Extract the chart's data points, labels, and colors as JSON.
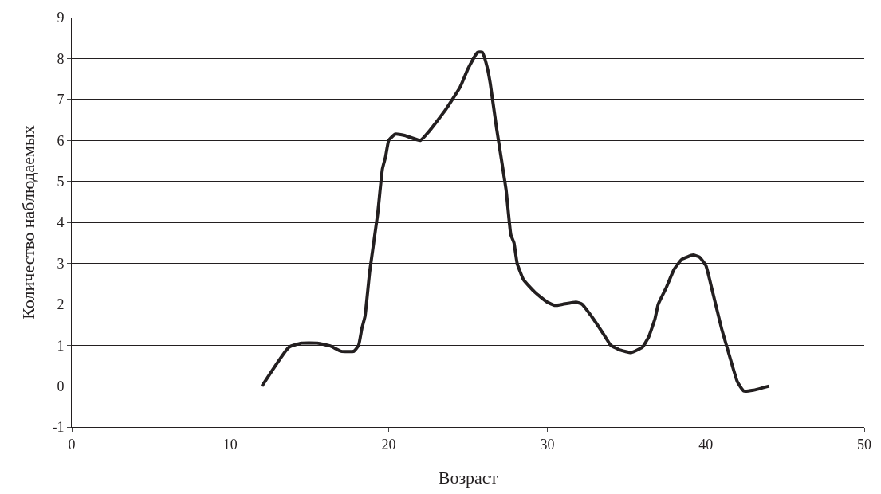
{
  "chart_data": {
    "type": "line",
    "xlabel": "Возраст",
    "ylabel": "Количество наблюдаемых",
    "x": [
      12,
      13.7,
      14.5,
      15.5,
      16.3,
      17,
      17.8,
      18.1,
      18.3,
      18.5,
      18.8,
      19.3,
      19.6,
      19.8,
      20,
      20.4,
      21,
      22,
      22.5,
      23.5,
      24.5,
      25,
      25.6,
      25.9,
      26.2,
      26.4,
      26.8,
      27.4,
      27.7,
      27.9,
      28.1,
      28.5,
      29.2,
      30,
      30.5,
      31,
      31.8,
      32.2,
      32.8,
      33.5,
      34,
      34.6,
      35.3,
      36,
      36.4,
      36.8,
      37,
      37.5,
      38,
      38.5,
      39.2,
      39.6,
      40,
      40.4,
      41,
      41.3,
      41.6,
      42,
      42.4,
      43,
      44
    ],
    "series": [
      {
        "color": "#231f20",
        "values": [
          0,
          0.95,
          1.05,
          1.05,
          0.98,
          0.85,
          0.85,
          1.0,
          1.4,
          1.7,
          2.8,
          4.2,
          5.3,
          5.6,
          6.0,
          6.15,
          6.12,
          6.0,
          6.2,
          6.7,
          7.3,
          7.75,
          8.15,
          8.15,
          7.8,
          7.4,
          6.3,
          4.8,
          3.7,
          3.5,
          3.0,
          2.6,
          2.3,
          2.05,
          1.97,
          2.0,
          2.05,
          2.0,
          1.7,
          1.3,
          1.0,
          0.88,
          0.82,
          0.95,
          1.2,
          1.65,
          2.0,
          2.4,
          2.85,
          3.1,
          3.2,
          3.15,
          2.95,
          2.35,
          1.4,
          1.0,
          0.6,
          0.1,
          -0.12,
          -0.1,
          0.0
        ]
      }
    ],
    "xlim": [
      0,
      50
    ],
    "xticks": [
      0,
      10,
      20,
      30,
      40,
      50
    ],
    "ylim": [
      -1,
      9
    ],
    "yticks": [
      -1,
      0,
      1,
      2,
      3,
      4,
      5,
      6,
      7,
      8,
      9
    ],
    "grid": "y",
    "legend": false,
    "marker": "none",
    "line_style": "solid"
  }
}
